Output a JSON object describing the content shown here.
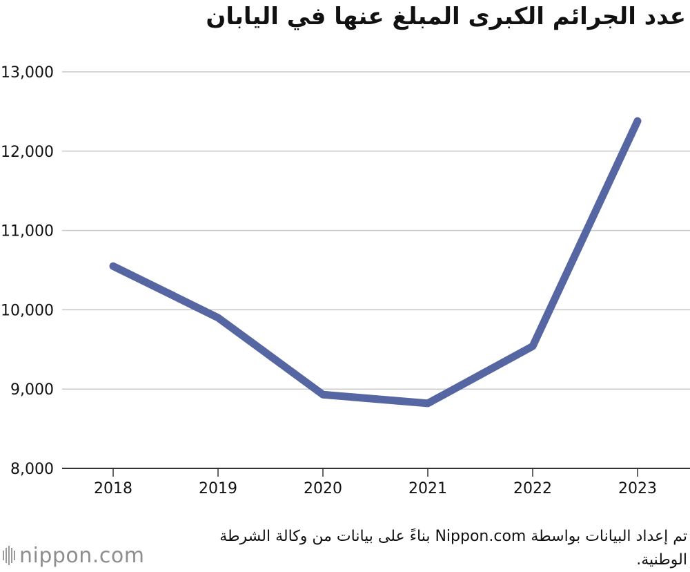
{
  "title": "عدد الجرائم الكبرى المبلغ عنها في اليابان",
  "source": "تم إعداد البيانات بواسطة Nippon.com بناءً على بيانات من وكالة الشرطة الوطنية.",
  "logo": {
    "text": "nippon.com"
  },
  "colors": {
    "line": "#5566a3",
    "grid": "#c8c8c8",
    "axis": "#333333"
  },
  "chart_data": {
    "type": "line",
    "title": "عدد الجرائم الكبرى المبلغ عنها في اليابان",
    "xlabel": "",
    "ylabel": "",
    "categories": [
      "2018",
      "2019",
      "2020",
      "2021",
      "2022",
      "2023"
    ],
    "series": [
      {
        "values": [
          10550,
          9900,
          8930,
          8820,
          9540,
          12380
        ]
      }
    ],
    "ylim": [
      8000,
      13000
    ],
    "yticks": [
      8000,
      9000,
      10000,
      11000,
      12000,
      13000
    ],
    "ytick_labels": [
      "8,000",
      "9,000",
      "10,000",
      "11,000",
      "12,000",
      "13,000"
    ],
    "grid": true,
    "legend": "none"
  }
}
